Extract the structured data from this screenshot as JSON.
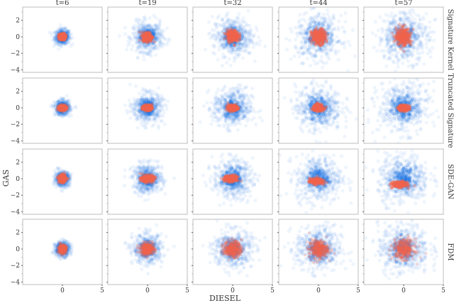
{
  "chart_data": {
    "type": "scatter",
    "grid": false,
    "xlabel": "DIESEL",
    "ylabel": "GAS",
    "columns": [
      "t=6",
      "t=19",
      "t=32",
      "t=44",
      "t=57"
    ],
    "rows": [
      "Signature Kernel",
      "Truncated Signature",
      "SDE-GAN",
      "FDM"
    ],
    "x_ticks": [
      0,
      5
    ],
    "y_ticks": [
      2,
      0,
      -2,
      -4
    ],
    "xlim": [
      -5,
      5
    ],
    "ylim": [
      -4.3,
      3.6
    ],
    "colors": {
      "real": "#1f77e4",
      "generated": "#f2654c"
    },
    "real_spread": [
      0.55,
      1.1,
      1.45,
      1.7,
      1.9
    ],
    "generated": [
      [
        {
          "cx": 0.0,
          "cy": 0.0,
          "sx": 0.35,
          "sy": 0.35
        },
        {
          "cx": 0.0,
          "cy": 0.0,
          "sx": 0.55,
          "sy": 0.5
        },
        {
          "cx": 0.0,
          "cy": 0.1,
          "sx": 0.65,
          "sy": 0.65
        },
        {
          "cx": 0.0,
          "cy": 0.0,
          "sx": 0.8,
          "sy": 0.8
        },
        {
          "cx": 0.0,
          "cy": 0.0,
          "sx": 0.85,
          "sy": 0.95
        }
      ],
      [
        {
          "cx": 0.0,
          "cy": 0.0,
          "sx": 0.4,
          "sy": 0.3
        },
        {
          "cx": 0.0,
          "cy": 0.0,
          "sx": 0.5,
          "sy": 0.3
        },
        {
          "cx": 0.0,
          "cy": 0.0,
          "sx": 0.55,
          "sy": 0.3
        },
        {
          "cx": 0.0,
          "cy": 0.0,
          "sx": 0.6,
          "sy": 0.35
        },
        {
          "cx": 0.0,
          "cy": 0.0,
          "sx": 0.6,
          "sy": 0.3
        }
      ],
      [
        {
          "cx": 0.0,
          "cy": 0.0,
          "sx": 0.4,
          "sy": 0.4
        },
        {
          "cx": 0.0,
          "cy": 0.0,
          "sx": 0.7,
          "sy": 0.35
        },
        {
          "cx": -0.2,
          "cy": 0.0,
          "sx": 0.75,
          "sy": 0.35
        },
        {
          "cx": -0.3,
          "cy": -0.3,
          "sx": 0.75,
          "sy": 0.3
        },
        {
          "cx": -0.5,
          "cy": -0.7,
          "sx": 0.8,
          "sy": 0.3
        }
      ],
      [
        {
          "cx": 0.0,
          "cy": 0.0,
          "sx": 0.45,
          "sy": 0.45
        },
        {
          "cx": 0.0,
          "cy": 0.0,
          "sx": 0.8,
          "sy": 0.65
        },
        {
          "cx": 0.0,
          "cy": 0.0,
          "sx": 1.0,
          "sy": 0.9
        },
        {
          "cx": 0.0,
          "cy": 0.0,
          "sx": 1.1,
          "sy": 1.0
        },
        {
          "cx": 0.0,
          "cy": 0.0,
          "sx": 1.2,
          "sy": 1.1
        }
      ]
    ]
  }
}
